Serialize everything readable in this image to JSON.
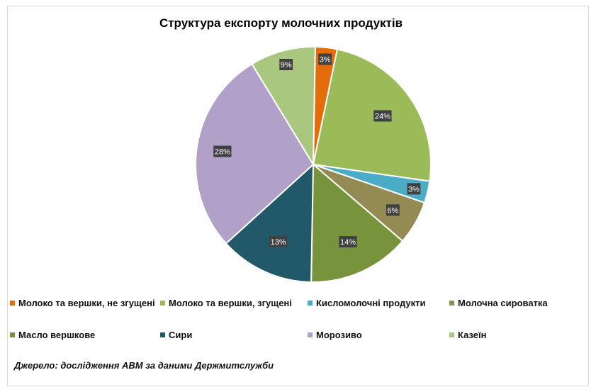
{
  "chart_data": {
    "type": "pie",
    "title": "Структура експорту молочних продуктів",
    "categories": [
      "Молоко та вершки, не згущені",
      "Молоко та вершки, згущені",
      "Кисломолочні  продукти",
      "Молочна сироватка",
      "Масло вершкове",
      "Сири",
      "Морозиво",
      "Казеїн"
    ],
    "values": [
      3,
      24,
      3,
      6,
      14,
      13,
      28,
      9
    ],
    "labels": [
      "3%",
      "24%",
      "3%",
      "6%",
      "14%",
      "13%",
      "28%",
      "9%"
    ],
    "colors": [
      "#E46C0A",
      "#9BBB59",
      "#4BACC6",
      "#948A54",
      "#77933C",
      "#215968",
      "#B1A0C7",
      "#A9C77F"
    ],
    "legend_position": "bottom"
  },
  "source": "Джерело: дослідження АВМ за даними Держмитслужби"
}
